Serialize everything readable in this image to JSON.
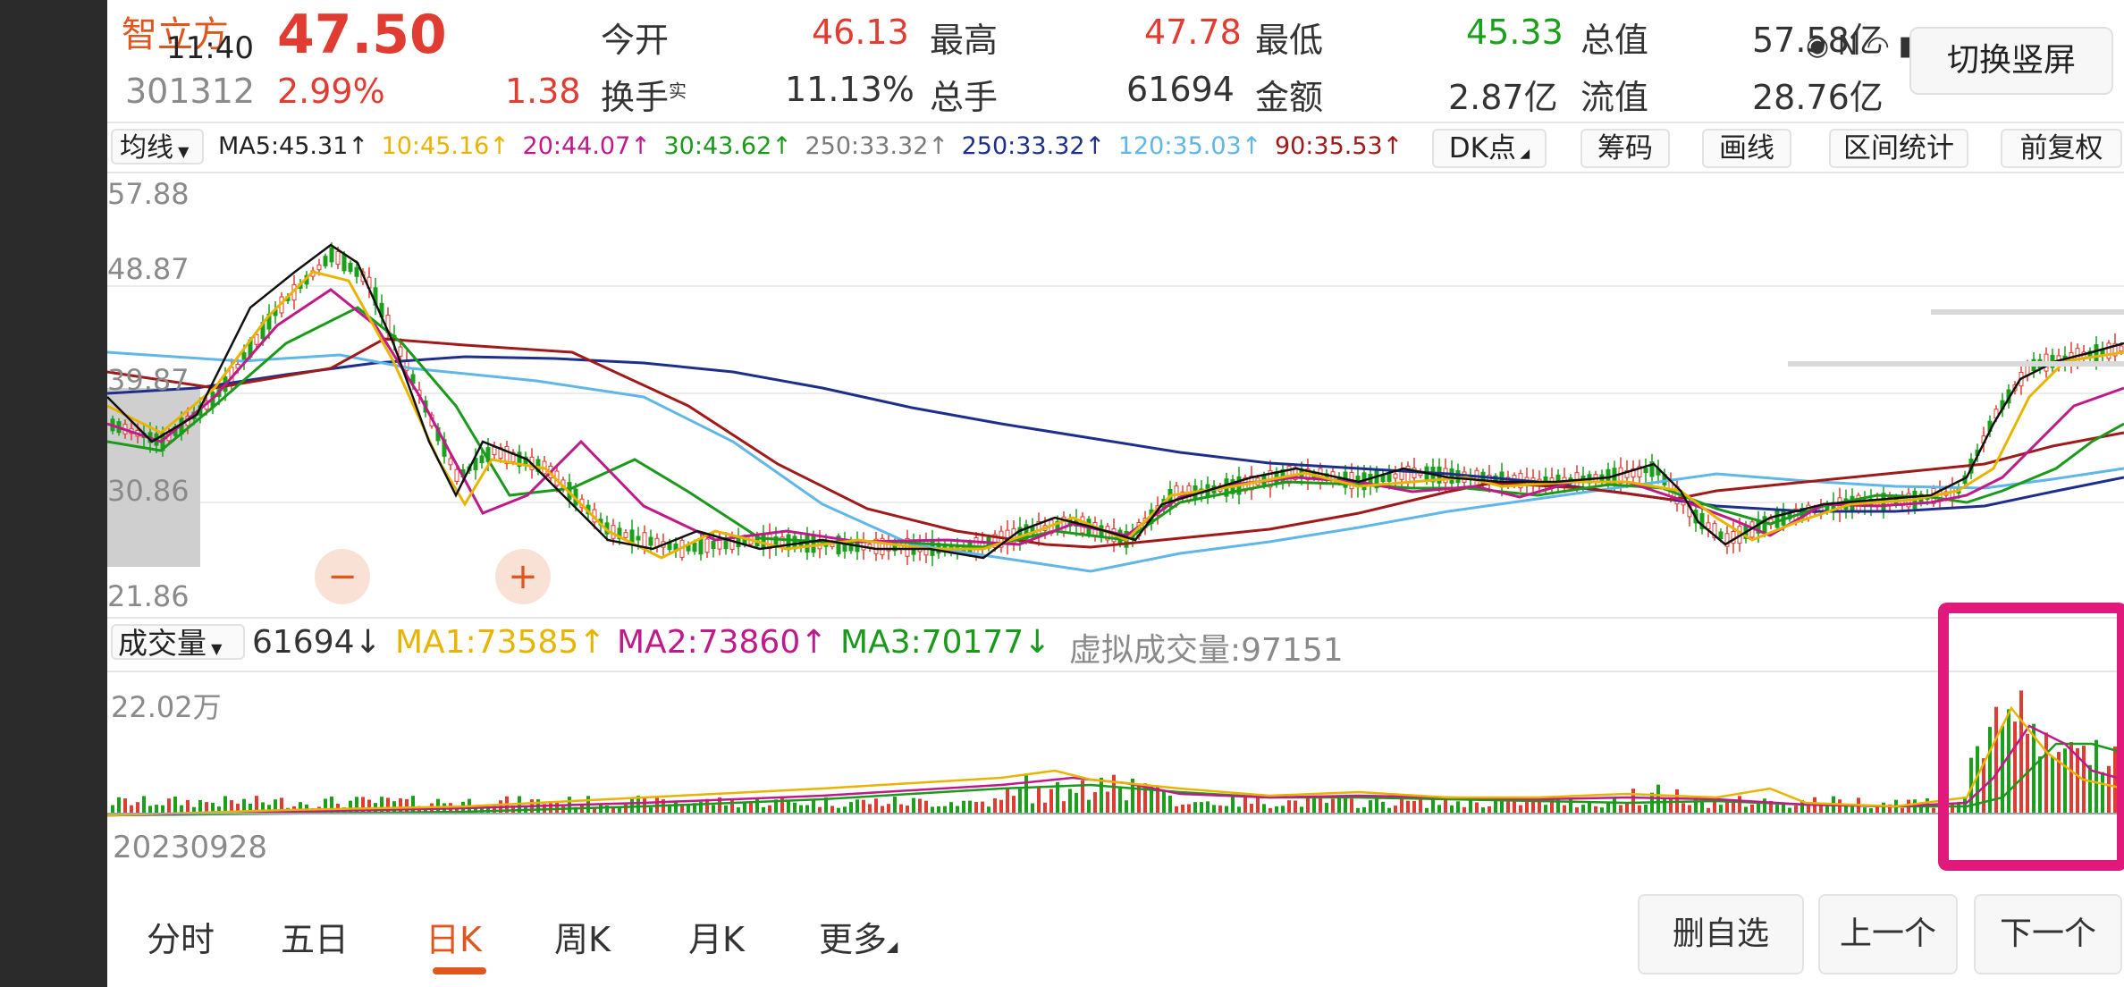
{
  "status_bar": {
    "time": "11:40",
    "icons": [
      "eye-icon",
      "nfc-icon",
      "wifi-icon",
      "signal-icon",
      "battery-icon"
    ]
  },
  "header": {
    "name": "智立方",
    "price": "47.50",
    "code": "301312",
    "change_pct": "2.99%",
    "change": "1.38",
    "stats": [
      {
        "label": "今开",
        "value": "46.13",
        "color": "red"
      },
      {
        "label": "最高",
        "value": "47.78",
        "color": "red"
      },
      {
        "label": "最低",
        "value": "45.33",
        "color": "green"
      },
      {
        "label": "总值",
        "value": "57.58亿",
        "color": "dark"
      },
      {
        "label": "换手",
        "sup": "实",
        "value": "11.13%",
        "color": "dark"
      },
      {
        "label": "总手",
        "value": "61694",
        "color": "dark"
      },
      {
        "label": "金额",
        "value": "2.87亿",
        "color": "dark"
      },
      {
        "label": "流值",
        "value": "28.76亿",
        "color": "dark"
      }
    ],
    "fullscreen_button": "切换竖屏"
  },
  "ma_bar": {
    "selector": "均线",
    "items": [
      {
        "text": "MA5:45.31↑",
        "color": "#222222"
      },
      {
        "text": "10:45.16↑",
        "color": "#e8b400"
      },
      {
        "text": "20:44.07↑",
        "color": "#c0198a"
      },
      {
        "text": "30:43.62↑",
        "color": "#1a9a1a"
      },
      {
        "text": "250:33.32↑",
        "color": "#7a7a7a"
      },
      {
        "text": "250:33.32↑",
        "color": "#1d2f8a"
      },
      {
        "text": "120:35.03↑",
        "color": "#5fb6e8"
      },
      {
        "text": "90:35.53↑",
        "color": "#a01a1a"
      }
    ],
    "buttons": [
      "DK点",
      "筹码",
      "画线",
      "区间统计",
      "前复权"
    ]
  },
  "price_axis": [
    "57.88",
    "48.87",
    "39.87",
    "30.86",
    "21.86"
  ],
  "volume_bar": {
    "selector": "成交量",
    "value": "61694↓",
    "ma1": "MA1:73585↑",
    "ma2": "MA2:73860↑",
    "ma3": "MA3:70177↓",
    "virtual": "虚拟成交量:97151",
    "axis_top": "22.02万",
    "start_date": "20230928"
  },
  "zoom": {
    "minus": "−",
    "plus": "+"
  },
  "tabs": [
    {
      "label": "分时",
      "active": false
    },
    {
      "label": "五日",
      "active": false
    },
    {
      "label": "日K",
      "active": true
    },
    {
      "label": "周K",
      "active": false
    },
    {
      "label": "月K",
      "active": false
    },
    {
      "label": "更多",
      "active": false
    }
  ],
  "nav_buttons": [
    "删自选",
    "上一个",
    "下一个"
  ],
  "colors": {
    "up": "#e03c31",
    "down": "#1aa01a",
    "highlight_box": "#e0197a",
    "active_tab": "#e0561f"
  }
}
